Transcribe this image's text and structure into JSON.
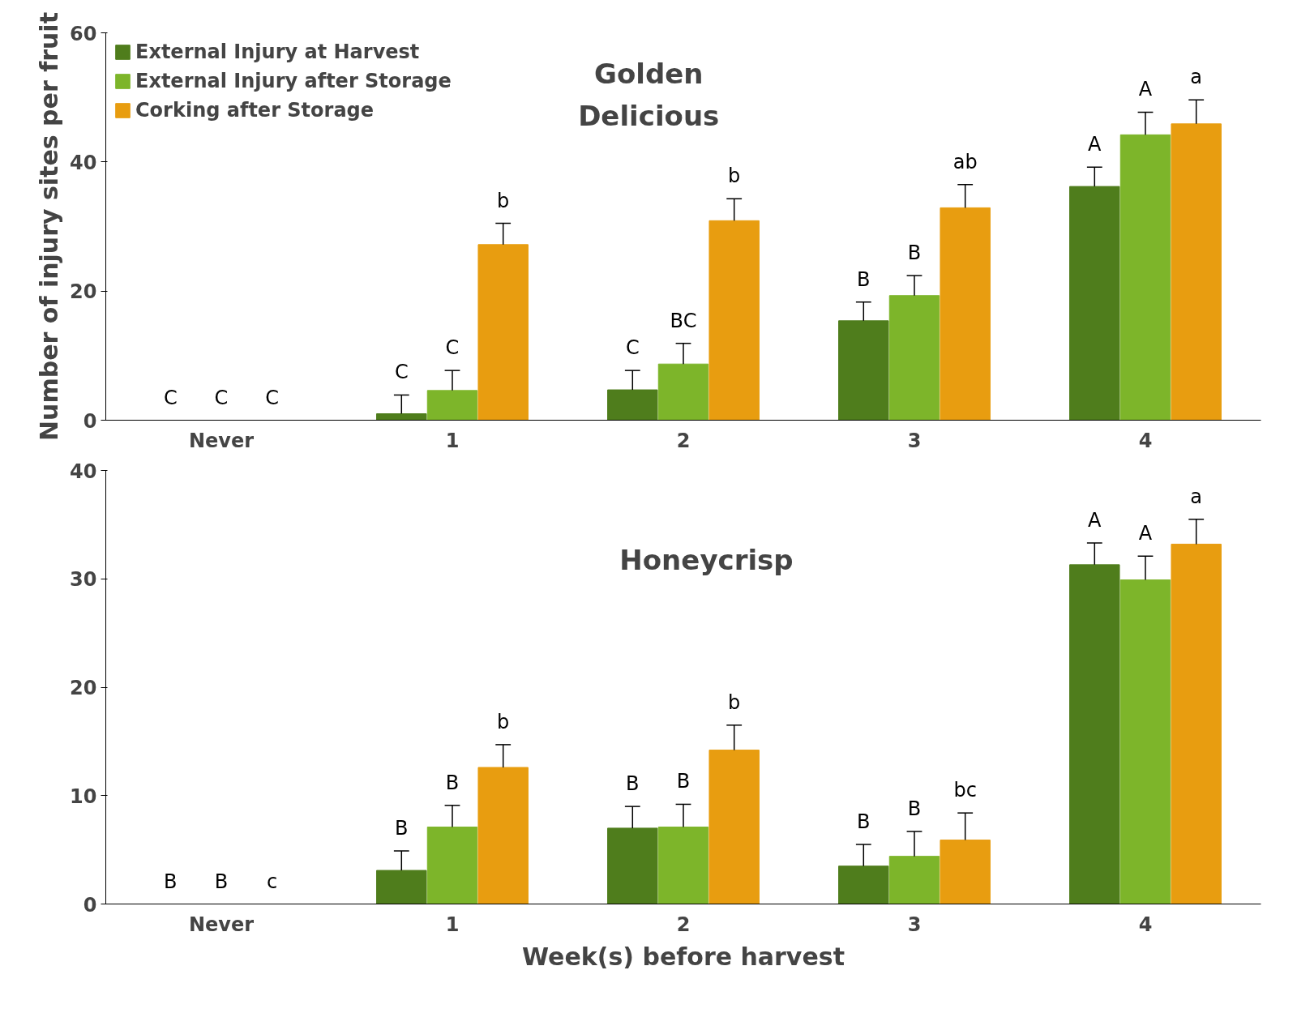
{
  "chart_data": [
    {
      "type": "bar",
      "title": "Golden\nDelicious",
      "ylabel": "Number of injury sites per fruit",
      "categories": [
        "Never",
        "1",
        "2",
        "3",
        "4"
      ],
      "ylim": [
        0,
        60
      ],
      "yticks": [
        0,
        20,
        40,
        60
      ],
      "grid": false,
      "legend": "top left",
      "series": [
        {
          "name": "External Injury at Harvest",
          "color": "#4f7d1c",
          "values": [
            0,
            1.0,
            4.7,
            15.4,
            36.2
          ],
          "errors": [
            null,
            2.9,
            3.0,
            2.9,
            3.0
          ],
          "value_labels": [
            "C",
            "C",
            "C",
            "B",
            "A"
          ]
        },
        {
          "name": "External Injury after Storage",
          "color": "#7db52a",
          "values": [
            0,
            4.6,
            8.7,
            19.3,
            44.2
          ],
          "errors": [
            null,
            3.1,
            3.2,
            3.1,
            3.5
          ],
          "value_labels": [
            "C",
            "C",
            "BC",
            "B",
            "A"
          ]
        },
        {
          "name": "Corking after Storage",
          "color": "#e89d10",
          "values": [
            0,
            27.2,
            30.9,
            32.9,
            45.9
          ],
          "errors": [
            null,
            3.3,
            3.4,
            3.6,
            3.7
          ],
          "value_labels": [
            "C",
            "b",
            "b",
            "ab",
            "a"
          ]
        }
      ]
    },
    {
      "type": "bar",
      "title": "Honeycrisp",
      "xlabel": "Week(s) before harvest",
      "categories": [
        "Never",
        "1",
        "2",
        "3",
        "4"
      ],
      "ylim": [
        0,
        40
      ],
      "yticks": [
        0,
        10,
        20,
        30,
        40
      ],
      "grid": false,
      "series": [
        {
          "color": "#4f7d1c",
          "values": [
            0,
            3.1,
            7.0,
            3.5,
            31.3
          ],
          "errors": [
            null,
            1.8,
            2.0,
            2.0,
            2.0
          ],
          "value_labels": [
            "B",
            "B",
            "B",
            "B",
            "A"
          ]
        },
        {
          "color": "#7db52a",
          "values": [
            0,
            7.1,
            7.1,
            4.4,
            29.9
          ],
          "errors": [
            null,
            2.0,
            2.1,
            2.3,
            2.2
          ],
          "value_labels": [
            "B",
            "B",
            "B",
            "B",
            "A"
          ]
        },
        {
          "color": "#e89d10",
          "values": [
            0,
            12.6,
            14.2,
            5.9,
            33.2
          ],
          "errors": [
            null,
            2.1,
            2.3,
            2.5,
            2.3
          ],
          "value_labels": [
            "c",
            "b",
            "b",
            "bc",
            "a"
          ]
        }
      ]
    }
  ]
}
